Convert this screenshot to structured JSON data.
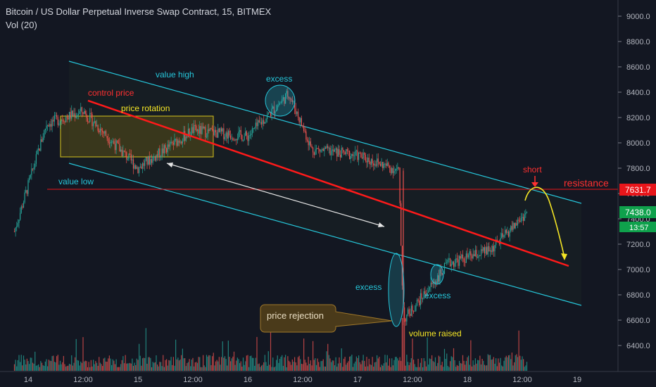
{
  "header": {
    "title": "Bitcoin / US Dollar Perpetual Inverse Swap Contract, 15, BITMEX",
    "volume_label": "Vol (20)"
  },
  "colors": {
    "background": "#131722",
    "up": "#26a69a",
    "down": "#ef5350",
    "channel": "#26c6da",
    "control": "#ff1a1a",
    "annotation_cyan": "#26c6da",
    "annotation_yellow": "#f5e625",
    "annotation_red": "#ff3030",
    "price_tag_green": "#0fa14c",
    "resistance_tag": "#e8161b",
    "callout_bg": "#4a3a1a",
    "callout_border": "#a0782a"
  },
  "chart_data": {
    "type": "candlestick",
    "title": "Bitcoin / US Dollar Perpetual Inverse Swap Contract, 15, BITMEX",
    "y_axis": {
      "range": [
        6300,
        9100
      ],
      "ticks": [
        "9000.0",
        "8800.0",
        "8600.0",
        "8400.0",
        "8200.0",
        "8000.0",
        "7800.0",
        "7600.0",
        "7400.0",
        "7200.0",
        "7000.0",
        "6800.0",
        "6600.0",
        "6400.0"
      ]
    },
    "x_axis": {
      "ticks": [
        "14",
        "12:00",
        "15",
        "12:00",
        "16",
        "12:00",
        "17",
        "12:00",
        "18",
        "12:00",
        "19"
      ]
    },
    "price_path_keypoints": [
      {
        "time": "Jun 13 21:00",
        "price": 7300
      },
      {
        "time": "Jun 14 04:00",
        "price": 8150
      },
      {
        "time": "Jun 14 12:00",
        "price": 8250
      },
      {
        "time": "Jun 15 00:00",
        "price": 7800
      },
      {
        "time": "Jun 15 12:00",
        "price": 8100
      },
      {
        "time": "Jun 16 00:00",
        "price": 8050
      },
      {
        "time": "Jun 16 09:00",
        "price": 8390
      },
      {
        "time": "Jun 16 14:00",
        "price": 7950
      },
      {
        "time": "Jun 17 00:00",
        "price": 7900
      },
      {
        "time": "Jun 17 09:00",
        "price": 7780
      },
      {
        "time": "Jun 17 10:00",
        "price": 6600
      },
      {
        "time": "Jun 17 20:00",
        "price": 7050
      },
      {
        "time": "Jun 18 05:00",
        "price": 7150
      },
      {
        "time": "Jun 18 13:00",
        "price": 7450
      }
    ],
    "current_price": "7438.0",
    "countdown": "13:57",
    "resistance_level": "7631.7",
    "resistance_label": "resistance",
    "annotations": {
      "value_high": "value high",
      "value_low": "value low",
      "control_price": "control price",
      "price_rotation": "price rotation",
      "excess_top": "excess",
      "excess_left": "excess",
      "excess_bottom": "excess",
      "volume_raised": "volume raised",
      "short": "short",
      "price_rejection": "price rejection"
    },
    "volume_series": "Vol (20)",
    "grid": false
  }
}
